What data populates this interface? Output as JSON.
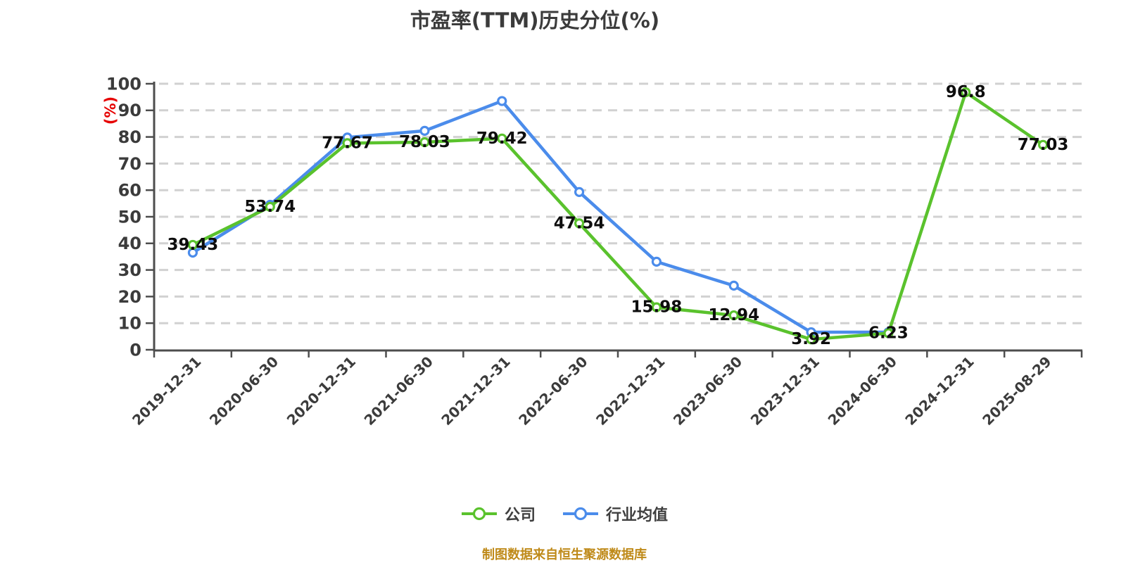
{
  "footer": {
    "text": "制图数据来自恒生聚源数据库"
  },
  "colors": {
    "title": "#3b3b3b",
    "axis_line": "#4d4d4d",
    "tick_label": "#3b3b3b",
    "grid_line": "#d1d1d1",
    "value_label": "#0d0d0d",
    "y_unit_label": "#e60000",
    "footer_text": "#bf8a19",
    "point_fill": "#ffffff"
  },
  "chart_data": {
    "type": "line",
    "title": "市盈率(TTM)历史分位(%)",
    "ylabel": "(%)",
    "ylim": [
      0,
      100
    ],
    "y_tick_step": 10,
    "grid": "horizontal dashed",
    "legend_position": "bottom",
    "categories": [
      "2019-12-31",
      "2020-06-30",
      "2020-12-31",
      "2021-06-30",
      "2021-12-31",
      "2022-06-30",
      "2022-12-31",
      "2023-06-30",
      "2023-12-31",
      "2024-06-30",
      "2024-12-31",
      "2025-08-29"
    ],
    "series": [
      {
        "name": "公司",
        "color": "#5ac22d",
        "show_point_labels": true,
        "values": [
          39.43,
          53.74,
          77.67,
          78.03,
          79.42,
          47.54,
          15.98,
          12.94,
          3.92,
          6.23,
          96.8,
          77.03
        ]
      },
      {
        "name": "行业均值",
        "color": "#4b8ceb",
        "show_point_labels": false,
        "values": [
          36.5,
          54.5,
          79.8,
          82.3,
          93.5,
          59.3,
          33.1,
          24.1,
          6.6,
          6.6,
          null,
          null
        ]
      }
    ]
  }
}
